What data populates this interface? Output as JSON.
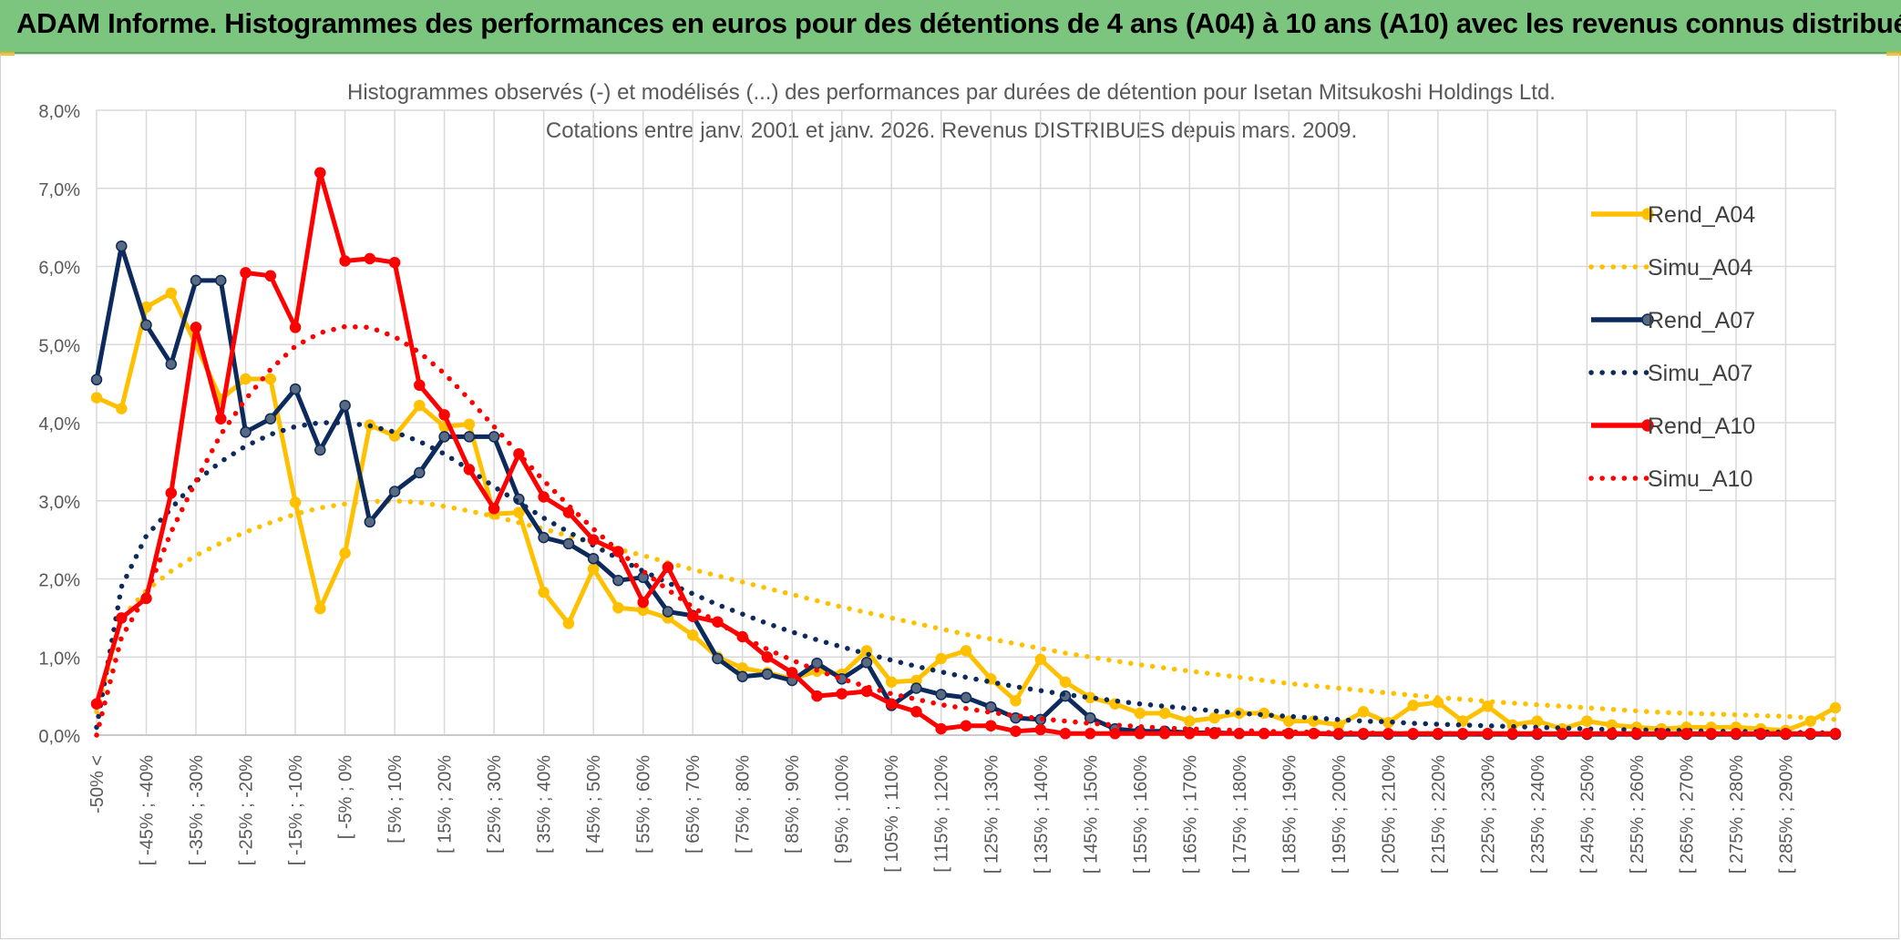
{
  "banner": {
    "title": "ADAM Informe. Histogrammes des performances en euros pour des détentions de 4 ans (A04) à 10 ans (A10) avec les revenus connus distribués"
  },
  "colors": {
    "banner_bg": "#7cc57e",
    "a04": "#ffc000",
    "a07": "#0d2a5c",
    "a07_marker": "#5a6a80",
    "a10": "#ff0000",
    "grid": "#d9d9d9"
  },
  "chart_data": {
    "type": "line",
    "title": "Histogrammes observés (-) et modélisés (...) des performances par durées de détention pour Isetan Mitsukoshi Holdings Ltd.",
    "subtitle": "Cotations entre janv. 2001 et janv. 2026. Revenus DISTRIBUES depuis mars. 2009.",
    "ylim": [
      0,
      8
    ],
    "yticks": [
      "0,0%",
      "1,0%",
      "2,0%",
      "3,0%",
      "4,0%",
      "5,0%",
      "6,0%",
      "7,0%",
      "8,0%"
    ],
    "grid": true,
    "legend_position": "right",
    "x_count": 71,
    "x_tick_labels": [
      "-50% <",
      "[ -45% ; -40%",
      "[ -35% ; -30%",
      "[ -25% ; -20%",
      "[ -15% ; -10%",
      "[ -5% ; 0%",
      "[ 5% ; 10%",
      "[ 15% ; 20%",
      "[ 25% ; 30%",
      "[ 35% ; 40%",
      "[ 45% ; 50%",
      "[ 55% ; 60%",
      "[ 65% ; 70%",
      "[ 75% ; 80%",
      "[ 85% ; 90%",
      "[ 95% ; 100%",
      "[ 105% ; 110%",
      "[ 115% ; 120%",
      "[ 125% ; 130%",
      "[ 135% ; 140%",
      "[ 145% ; 150%",
      "[ 155% ; 160%",
      "[ 165% ; 170%",
      "[ 175% ; 180%",
      "[ 185% ; 190%",
      "[ 195% ; 200%",
      "[ 205% ; 210%",
      "[ 215% ; 220%",
      "[ 225% ; 230%",
      "[ 235% ; 240%",
      "[ 245% ; 250%",
      "[ 255% ; 260%",
      "[ 265% ; 270%",
      "[ 275% ; 280%",
      "[ 285% ; 290%"
    ],
    "series": [
      {
        "name": "Rend_A04",
        "style": "solid",
        "color": "#ffc000",
        "values": [
          4.32,
          4.18,
          5.48,
          5.66,
          5.0,
          4.3,
          4.56,
          4.56,
          2.98,
          1.62,
          2.33,
          3.97,
          3.83,
          4.22,
          3.95,
          3.98,
          2.83,
          2.85,
          1.83,
          1.43,
          2.13,
          1.63,
          1.6,
          1.5,
          1.28,
          1.0,
          0.86,
          0.8,
          0.72,
          0.82,
          0.78,
          1.08,
          0.68,
          0.7,
          0.98,
          1.08,
          0.72,
          0.44,
          0.97,
          0.68,
          0.48,
          0.4,
          0.28,
          0.28,
          0.18,
          0.22,
          0.28,
          0.28,
          0.18,
          0.18,
          0.13,
          0.3,
          0.16,
          0.38,
          0.42,
          0.18,
          0.37,
          0.13,
          0.18,
          0.08,
          0.18,
          0.13,
          0.1,
          0.08,
          0.1,
          0.1,
          0.1,
          0.08,
          0.06,
          0.18,
          0.35
        ]
      },
      {
        "name": "Simu_A04",
        "style": "dotted",
        "color": "#ffc000",
        "values": [
          0.3,
          1.5,
          1.85,
          2.1,
          2.3,
          2.46,
          2.6,
          2.72,
          2.83,
          2.91,
          2.96,
          2.99,
          3.0,
          2.98,
          2.93,
          2.87,
          2.8,
          2.72,
          2.64,
          2.55,
          2.46,
          2.38,
          2.3,
          2.21,
          2.12,
          2.04,
          1.96,
          1.88,
          1.8,
          1.72,
          1.64,
          1.57,
          1.5,
          1.43,
          1.36,
          1.29,
          1.23,
          1.17,
          1.11,
          1.05,
          1.0,
          0.95,
          0.9,
          0.86,
          0.82,
          0.78,
          0.74,
          0.7,
          0.66,
          0.63,
          0.6,
          0.57,
          0.54,
          0.51,
          0.48,
          0.46,
          0.43,
          0.41,
          0.39,
          0.37,
          0.35,
          0.33,
          0.31,
          0.29,
          0.28,
          0.27,
          0.26,
          0.25,
          0.24,
          0.22,
          0.2
        ]
      },
      {
        "name": "Rend_A07",
        "style": "solid",
        "color": "#0d2a5c",
        "values": [
          4.55,
          6.26,
          5.25,
          4.75,
          5.82,
          5.82,
          3.88,
          4.05,
          4.43,
          3.65,
          4.22,
          2.73,
          3.12,
          3.36,
          3.82,
          3.82,
          3.82,
          3.02,
          2.53,
          2.45,
          2.26,
          1.98,
          2.02,
          1.58,
          1.53,
          0.98,
          0.75,
          0.78,
          0.7,
          0.92,
          0.72,
          0.93,
          0.38,
          0.6,
          0.52,
          0.48,
          0.36,
          0.22,
          0.2,
          0.5,
          0.22,
          0.08,
          0.05,
          0.05,
          0.03,
          0.03,
          0.02,
          0.02,
          0.02,
          0.02,
          0.01,
          0.01,
          0.01,
          0.01,
          0.01,
          0.01,
          0.01,
          0.01,
          0.01,
          0.01,
          0.01,
          0.01,
          0.01,
          0.01,
          0.01,
          0.01,
          0.01,
          0.01,
          0.01,
          0.01,
          0.01
        ]
      },
      {
        "name": "Simu_A07",
        "style": "dotted",
        "color": "#0d2a5c",
        "values": [
          0.1,
          1.9,
          2.55,
          2.9,
          3.25,
          3.5,
          3.7,
          3.85,
          3.95,
          4.0,
          4.0,
          3.96,
          3.88,
          3.76,
          3.6,
          3.4,
          3.18,
          2.98,
          2.78,
          2.6,
          2.43,
          2.26,
          2.1,
          1.95,
          1.81,
          1.67,
          1.55,
          1.43,
          1.32,
          1.22,
          1.13,
          1.04,
          0.96,
          0.88,
          0.81,
          0.74,
          0.68,
          0.62,
          0.57,
          0.52,
          0.48,
          0.44,
          0.4,
          0.37,
          0.34,
          0.31,
          0.28,
          0.26,
          0.24,
          0.22,
          0.2,
          0.18,
          0.17,
          0.15,
          0.14,
          0.13,
          0.12,
          0.11,
          0.1,
          0.09,
          0.08,
          0.07,
          0.07,
          0.06,
          0.06,
          0.05,
          0.05,
          0.04,
          0.04,
          0.03,
          0.03
        ]
      },
      {
        "name": "Rend_A10",
        "style": "solid",
        "color": "#ff0000",
        "values": [
          0.4,
          1.5,
          1.75,
          3.1,
          5.22,
          4.05,
          5.92,
          5.88,
          5.22,
          7.2,
          6.07,
          6.1,
          6.05,
          4.48,
          4.1,
          3.4,
          2.9,
          3.6,
          3.05,
          2.85,
          2.5,
          2.35,
          1.7,
          2.15,
          1.52,
          1.45,
          1.26,
          1.0,
          0.8,
          0.5,
          0.53,
          0.56,
          0.4,
          0.3,
          0.08,
          0.12,
          0.12,
          0.05,
          0.07,
          0.02,
          0.02,
          0.02,
          0.02,
          0.02,
          0.02,
          0.02,
          0.02,
          0.02,
          0.02,
          0.02,
          0.02,
          0.02,
          0.02,
          0.02,
          0.02,
          0.02,
          0.02,
          0.02,
          0.02,
          0.02,
          0.02,
          0.02,
          0.02,
          0.02,
          0.02,
          0.02,
          0.02,
          0.02,
          0.02,
          0.02,
          0.02
        ]
      },
      {
        "name": "Simu_A10",
        "style": "dotted",
        "color": "#ff0000",
        "values": [
          0.0,
          1.25,
          1.8,
          2.6,
          3.25,
          3.85,
          4.3,
          4.68,
          4.98,
          5.15,
          5.23,
          5.22,
          5.1,
          4.9,
          4.63,
          4.3,
          3.95,
          3.6,
          3.26,
          2.94,
          2.64,
          2.36,
          2.1,
          1.86,
          1.64,
          1.44,
          1.26,
          1.1,
          0.96,
          0.83,
          0.72,
          0.62,
          0.53,
          0.46,
          0.39,
          0.34,
          0.29,
          0.25,
          0.21,
          0.18,
          0.15,
          0.13,
          0.11,
          0.09,
          0.08,
          0.07,
          0.06,
          0.05,
          0.04,
          0.04,
          0.03,
          0.03,
          0.02,
          0.02,
          0.02,
          0.02,
          0.01,
          0.01,
          0.01,
          0.01,
          0.01,
          0.01,
          0.01,
          0.01,
          0.01,
          0.01,
          0.01,
          0.01,
          0.01,
          0.01,
          0.01
        ]
      }
    ]
  }
}
